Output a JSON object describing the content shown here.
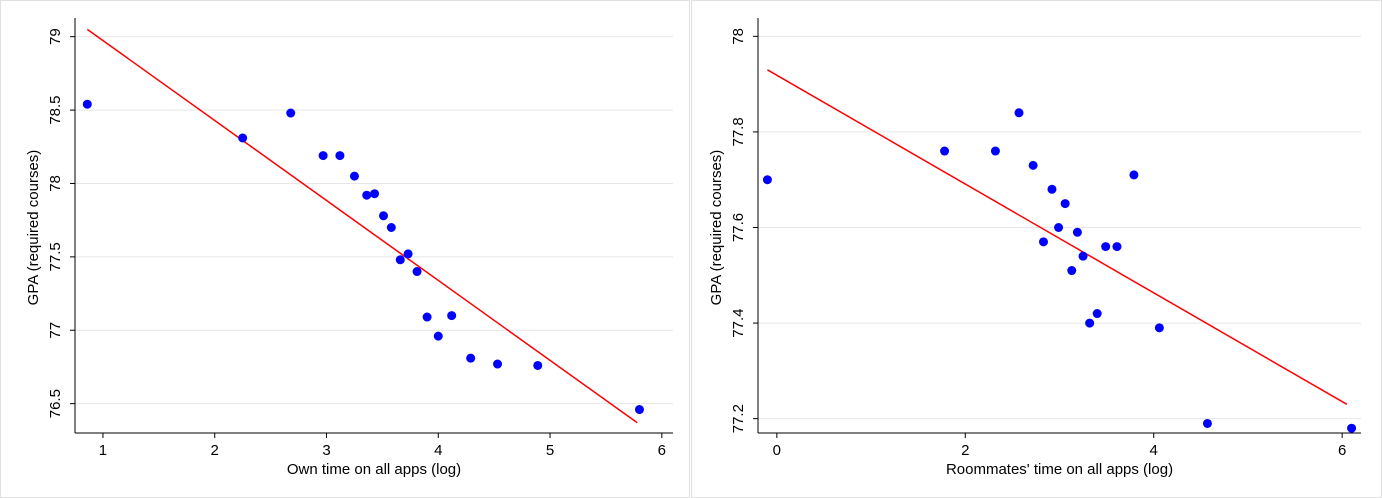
{
  "chart_data": [
    {
      "type": "scatter",
      "xlabel": "Own time on all apps (log)",
      "ylabel": "GPA (required courses)",
      "xlim": [
        0.75,
        6.1
      ],
      "ylim": [
        76.3,
        79.1
      ],
      "xticks": [
        1,
        2,
        3,
        4,
        5,
        6
      ],
      "yticks": [
        76.5,
        77,
        77.5,
        78,
        78.5,
        79
      ],
      "xtick_labels": [
        "1",
        "2",
        "3",
        "4",
        "5",
        "6"
      ],
      "ytick_labels": [
        "76.5",
        "77",
        "77.5",
        "78",
        "78.5",
        "79"
      ],
      "grid": true,
      "colors": {
        "points": "#0000ff",
        "fit": "#ff0000"
      },
      "points": [
        {
          "x": 0.86,
          "y": 78.54
        },
        {
          "x": 2.25,
          "y": 78.31
        },
        {
          "x": 2.68,
          "y": 78.48
        },
        {
          "x": 2.97,
          "y": 78.19
        },
        {
          "x": 3.12,
          "y": 78.19
        },
        {
          "x": 3.25,
          "y": 78.05
        },
        {
          "x": 3.36,
          "y": 77.92
        },
        {
          "x": 3.43,
          "y": 77.93
        },
        {
          "x": 3.51,
          "y": 77.78
        },
        {
          "x": 3.58,
          "y": 77.7
        },
        {
          "x": 3.66,
          "y": 77.48
        },
        {
          "x": 3.73,
          "y": 77.52
        },
        {
          "x": 3.81,
          "y": 77.4
        },
        {
          "x": 3.9,
          "y": 77.09
        },
        {
          "x": 4.0,
          "y": 76.96
        },
        {
          "x": 4.12,
          "y": 77.1
        },
        {
          "x": 4.29,
          "y": 76.81
        },
        {
          "x": 4.53,
          "y": 76.77
        },
        {
          "x": 4.89,
          "y": 76.76
        },
        {
          "x": 5.8,
          "y": 76.46
        }
      ],
      "fit_line": {
        "x": [
          0.86,
          5.78
        ],
        "y": [
          79.05,
          76.37
        ]
      }
    },
    {
      "type": "scatter",
      "xlabel": "Roommates' time on all apps (log)",
      "ylabel": "GPA (required courses)",
      "xlim": [
        -0.2,
        6.2
      ],
      "ylim": [
        77.17,
        78.03
      ],
      "xticks": [
        0,
        2,
        4,
        6
      ],
      "yticks": [
        77.2,
        77.4,
        77.6,
        77.8,
        78
      ],
      "xtick_labels": [
        "0",
        "2",
        "4",
        "6"
      ],
      "ytick_labels": [
        "77.2",
        "77.4",
        "77.6",
        "77.8",
        "78"
      ],
      "grid": true,
      "colors": {
        "points": "#0000ff",
        "fit": "#ff0000"
      },
      "points": [
        {
          "x": -0.1,
          "y": 77.7
        },
        {
          "x": 1.78,
          "y": 77.76
        },
        {
          "x": 2.32,
          "y": 77.76
        },
        {
          "x": 2.57,
          "y": 77.84
        },
        {
          "x": 2.72,
          "y": 77.73
        },
        {
          "x": 2.83,
          "y": 77.57
        },
        {
          "x": 2.92,
          "y": 77.68
        },
        {
          "x": 2.99,
          "y": 77.6
        },
        {
          "x": 3.06,
          "y": 77.65
        },
        {
          "x": 3.13,
          "y": 77.51
        },
        {
          "x": 3.19,
          "y": 77.59
        },
        {
          "x": 3.25,
          "y": 77.54
        },
        {
          "x": 3.32,
          "y": 77.4
        },
        {
          "x": 3.4,
          "y": 77.42
        },
        {
          "x": 3.49,
          "y": 77.56
        },
        {
          "x": 3.61,
          "y": 77.56
        },
        {
          "x": 3.79,
          "y": 77.71
        },
        {
          "x": 4.06,
          "y": 77.39
        },
        {
          "x": 4.57,
          "y": 77.19
        },
        {
          "x": 6.1,
          "y": 77.18
        }
      ],
      "fit_line": {
        "x": [
          -0.1,
          6.05
        ],
        "y": [
          77.93,
          77.23
        ]
      }
    }
  ]
}
